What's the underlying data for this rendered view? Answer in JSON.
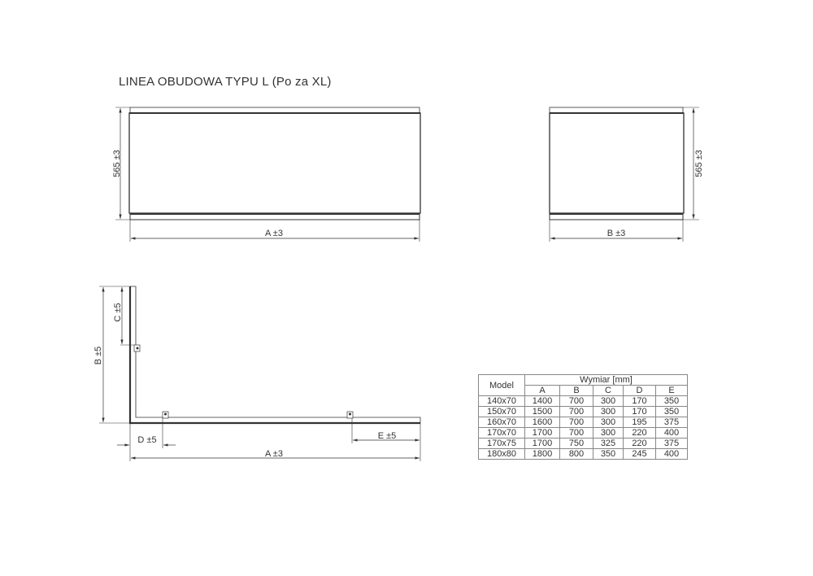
{
  "title": "LINEA OBUDOWA TYPU L (Po za XL)",
  "front_view": {
    "height_label": "565 ±3",
    "width_label": "A ±3"
  },
  "side_view": {
    "height_label": "565 ±3",
    "width_label": "B ±3"
  },
  "plan_view": {
    "b_label": "B ±5",
    "c_label": "C ±5",
    "d_label": "D ±5",
    "e_label": "E ±5",
    "a_label": "A ±3"
  },
  "table": {
    "model_header": "Model",
    "group_header": "Wymiar [mm]",
    "columns": [
      "A",
      "B",
      "C",
      "D",
      "E"
    ],
    "rows": [
      {
        "model": "140x70",
        "values": [
          "1400",
          "700",
          "300",
          "170",
          "350"
        ]
      },
      {
        "model": "150x70",
        "values": [
          "1500",
          "700",
          "300",
          "170",
          "350"
        ]
      },
      {
        "model": "160x70",
        "values": [
          "1600",
          "700",
          "300",
          "195",
          "375"
        ]
      },
      {
        "model": "170x70",
        "values": [
          "1700",
          "700",
          "300",
          "220",
          "400"
        ]
      },
      {
        "model": "170x75",
        "values": [
          "1700",
          "750",
          "325",
          "220",
          "375"
        ]
      },
      {
        "model": "180x80",
        "values": [
          "1800",
          "800",
          "350",
          "245",
          "400"
        ]
      }
    ]
  }
}
